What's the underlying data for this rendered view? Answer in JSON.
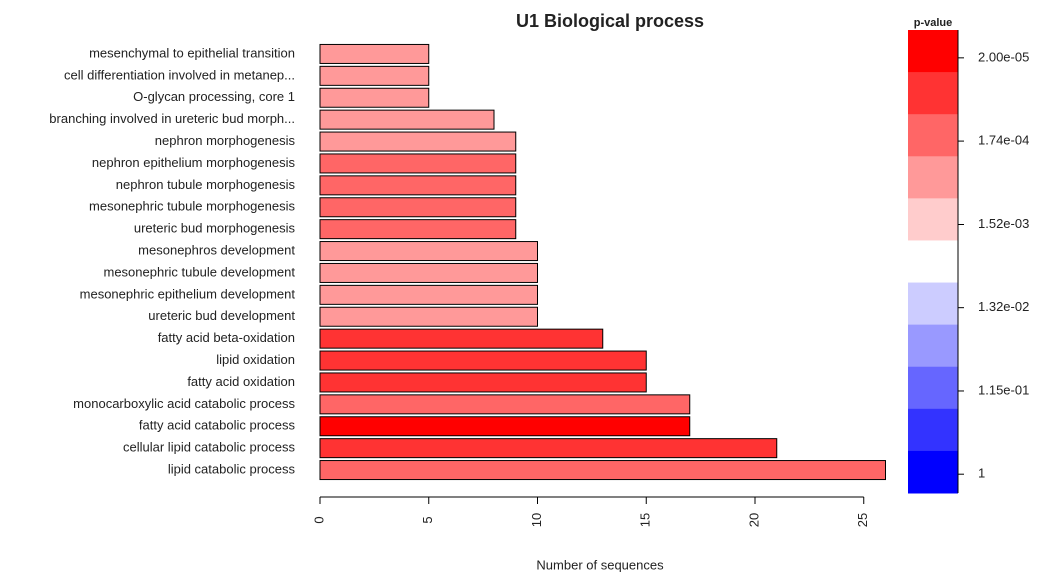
{
  "chart_data": {
    "type": "barh",
    "title": "U1 Biological process",
    "x_label": "Number of sequences",
    "categories": [
      "mesenchymal to epithelial transition",
      "cell differentiation involved in metanep...",
      "O-glycan processing, core 1",
      "branching involved in ureteric bud morph...",
      "nephron morphogenesis",
      "nephron epithelium morphogenesis",
      "nephron tubule morphogenesis",
      "mesonephric tubule morphogenesis",
      "ureteric bud morphogenesis",
      "mesonephros development",
      "mesonephric tubule development",
      "mesonephric epithelium development",
      "ureteric bud development",
      "fatty acid beta-oxidation",
      "lipid oxidation",
      "fatty acid oxidation",
      "monocarboxylic acid catabolic process",
      "fatty acid catabolic process",
      "cellular lipid catabolic process",
      "lipid catabolic process"
    ],
    "values": [
      5,
      5,
      5,
      8,
      9,
      9,
      9,
      9,
      9,
      10,
      10,
      10,
      10,
      13,
      15,
      15,
      17,
      17,
      21,
      26
    ],
    "colors": [
      "#ff9999",
      "#ff9999",
      "#ff9999",
      "#ff9999",
      "#ff9999",
      "#ff6666",
      "#ff6666",
      "#ff6666",
      "#ff6666",
      "#ff9999",
      "#ff9999",
      "#ff9999",
      "#ff9999",
      "#ff3333",
      "#ff3333",
      "#ff3333",
      "#ff6666",
      "#ff0000",
      "#ff3333",
      "#ff6666"
    ],
    "xlim": [
      0,
      26
    ],
    "xticks": [
      0,
      5,
      10,
      15,
      20,
      25
    ],
    "colorbar": {
      "title": "p-value",
      "log": true,
      "lim": [
        9.7e-06,
        1.63
      ],
      "colors": [
        "#ff0000",
        "#ff3333",
        "#ff6666",
        "#ff9999",
        "#ffcccc",
        "#ffffff",
        "#ccccff",
        "#9999ff",
        "#6666ff",
        "#3333ff",
        "#0000ff"
      ],
      "ticks": [
        {
          "value": 2e-05,
          "label": "2.00e-05"
        },
        {
          "value": 0.000174,
          "label": "1.74e-04"
        },
        {
          "value": 0.00152,
          "label": "1.52e-03"
        },
        {
          "value": 0.0132,
          "label": "1.32e-02"
        },
        {
          "value": 0.115,
          "label": "1.15e-01"
        },
        1
      ]
    }
  }
}
